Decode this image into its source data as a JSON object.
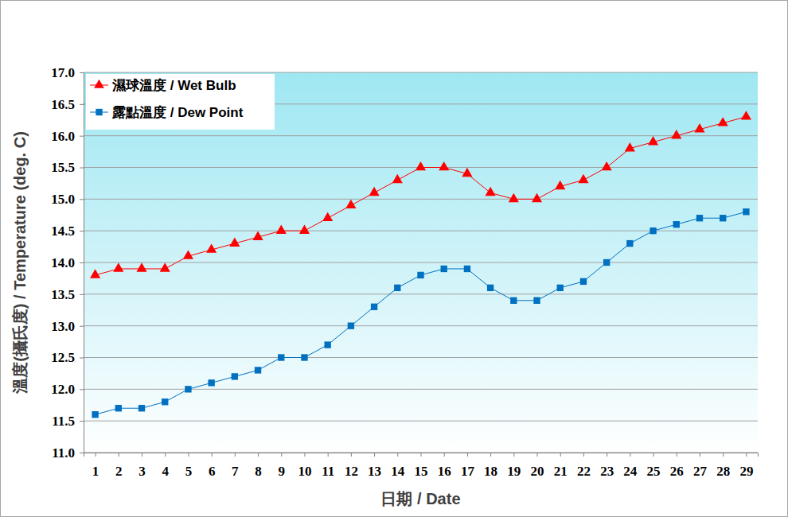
{
  "chart_data": {
    "type": "line",
    "x_label": "日期 / Date",
    "y_label": "溫度(攝氏度) / Temperature (deg. C)",
    "categories": [
      "1",
      "2",
      "3",
      "4",
      "5",
      "6",
      "7",
      "8",
      "9",
      "10",
      "11",
      "12",
      "13",
      "14",
      "15",
      "16",
      "17",
      "18",
      "19",
      "20",
      "21",
      "22",
      "23",
      "24",
      "25",
      "26",
      "27",
      "28",
      "29"
    ],
    "series": [
      {
        "name": "濕球溫度 / Wet Bulb",
        "color": "#ff0000",
        "marker": "triangle",
        "values": [
          13.8,
          13.9,
          13.9,
          13.9,
          14.1,
          14.2,
          14.3,
          14.4,
          14.5,
          14.5,
          14.7,
          14.9,
          15.1,
          15.3,
          15.5,
          15.5,
          15.4,
          15.1,
          15.0,
          15.0,
          15.2,
          15.3,
          15.5,
          15.8,
          15.9,
          16.0,
          16.1,
          16.2,
          16.3
        ]
      },
      {
        "name": "露點溫度 / Dew Point",
        "color": "#0070c0",
        "marker": "square",
        "values": [
          11.6,
          11.7,
          11.7,
          11.8,
          12.0,
          12.1,
          12.2,
          12.3,
          12.5,
          12.5,
          12.7,
          13.0,
          13.3,
          13.6,
          13.8,
          13.9,
          13.9,
          13.6,
          13.4,
          13.4,
          13.6,
          13.7,
          14.0,
          14.3,
          14.5,
          14.6,
          14.7,
          14.7,
          14.8
        ]
      }
    ],
    "ylim": [
      11,
      17
    ],
    "yticks": [
      {
        "value": 11,
        "label": "11.0"
      },
      11.5,
      {
        "value": 12,
        "label": "12.0"
      },
      12.5,
      {
        "value": 13,
        "label": "13.0"
      },
      13.5,
      {
        "value": 14,
        "label": "14.0"
      },
      14.5,
      {
        "value": 15,
        "label": "15.0"
      },
      15.5,
      {
        "value": 16,
        "label": "16.0"
      },
      16.5,
      {
        "value": 17,
        "label": "17.0"
      }
    ],
    "grid": true,
    "legend": "upper-left"
  }
}
